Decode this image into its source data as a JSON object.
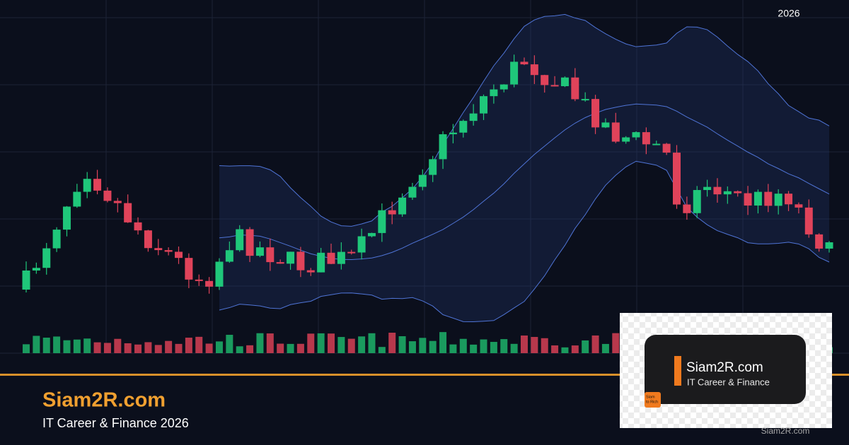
{
  "header": {
    "year": "2026"
  },
  "brand": {
    "title": "Siam2R.com",
    "subtitle": "IT Career & Finance 2026"
  },
  "logo_card": {
    "title": "Siam2R.com",
    "subtitle": "IT Career & Finance",
    "icon_lines": [
      "Siam",
      "to Rich"
    ]
  },
  "watermark": "Siam2R.com"
}
